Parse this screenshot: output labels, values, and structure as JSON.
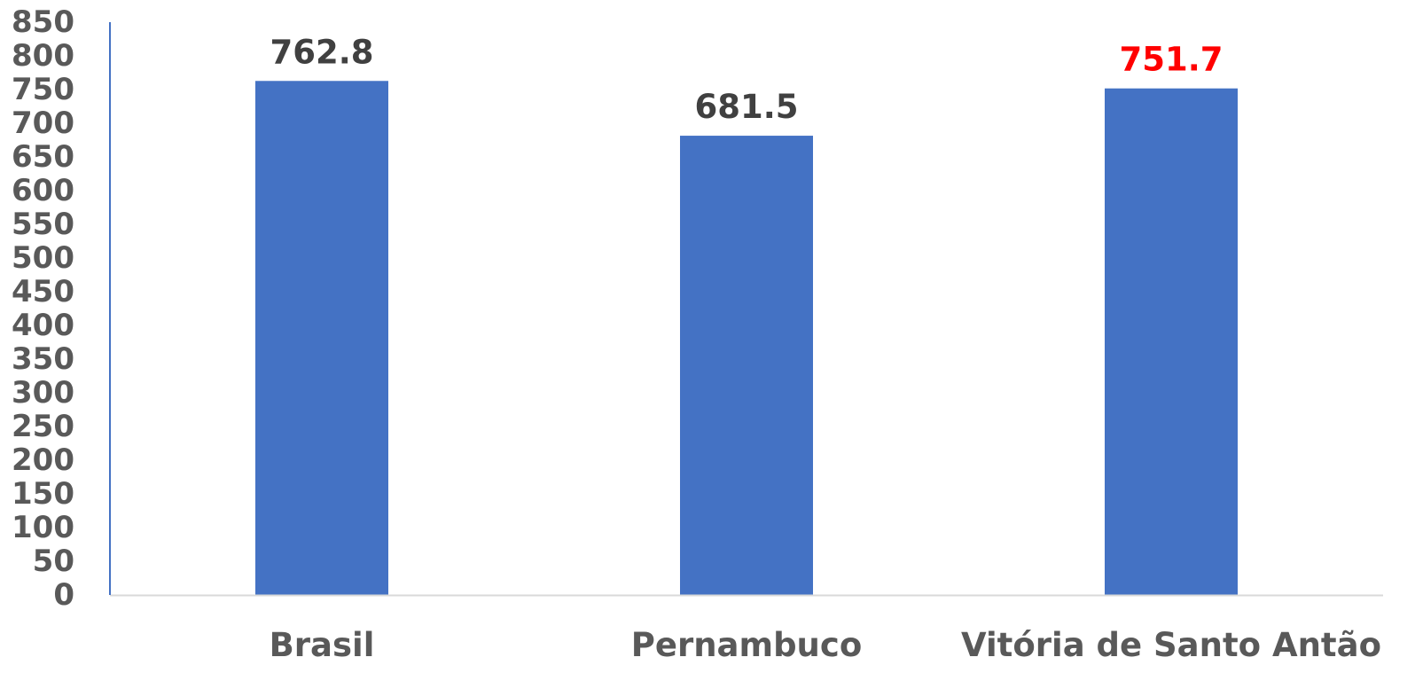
{
  "chart_data": {
    "type": "bar",
    "title": "",
    "xlabel": "",
    "ylabel": "",
    "categories": [
      "Brasil",
      "Pernambuco",
      "Vitória de Santo Antão"
    ],
    "values": [
      762.8,
      681.5,
      751.7
    ],
    "data_labels": [
      "762.8",
      "681.5",
      "751.7"
    ],
    "ylim": [
      0,
      850
    ],
    "y_ticks": [
      0,
      50,
      100,
      150,
      200,
      250,
      300,
      350,
      400,
      450,
      500,
      550,
      600,
      650,
      700,
      750,
      800,
      850
    ],
    "grid": false,
    "legend": "none",
    "colors": {
      "bar": "#4472C4",
      "axis": "#D9D9D9",
      "y_axis": "#4472C4",
      "tick_text": "#595959",
      "label_text": "#404040",
      "highlight_label": "#FF0000"
    },
    "highlight_index": 2
  }
}
